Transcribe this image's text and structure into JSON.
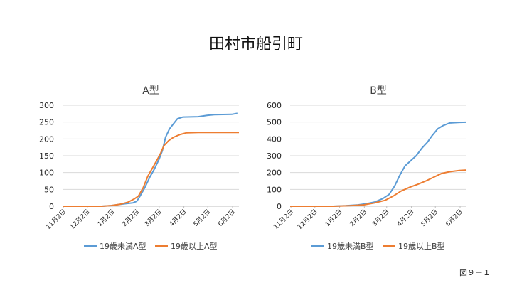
{
  "page": {
    "title": "田村市船引町",
    "figure_label": "図９－１"
  },
  "colors": {
    "series_under19": "#5b9bd5",
    "series_19plus": "#ed7d31",
    "gridline": "#d9d9d9",
    "axis_text": "#404040"
  },
  "chart_data": [
    {
      "type": "line",
      "title": "A型",
      "x_ticks": [
        "11月2日",
        "12月2日",
        "1月2日",
        "2月2日",
        "3月2日",
        "4月2日",
        "5月2日",
        "6月2日"
      ],
      "x_range": [
        "2020-11-01",
        "2021-06-10"
      ],
      "ylim": [
        0,
        300
      ],
      "y_ticks": [
        0,
        50,
        100,
        150,
        200,
        250,
        300
      ],
      "grid": true,
      "legend": "bottom",
      "series": [
        {
          "name": "19歳未満A型",
          "color": "#5b9bd5",
          "points": [
            [
              "2020-11-01",
              0
            ],
            [
              "2020-12-20",
              0
            ],
            [
              "2021-01-01",
              2
            ],
            [
              "2021-01-10",
              5
            ],
            [
              "2021-01-20",
              8
            ],
            [
              "2021-01-28",
              10
            ],
            [
              "2021-02-02",
              15
            ],
            [
              "2021-02-06",
              30
            ],
            [
              "2021-02-12",
              55
            ],
            [
              "2021-02-18",
              85
            ],
            [
              "2021-02-24",
              110
            ],
            [
              "2021-03-02",
              140
            ],
            [
              "2021-03-06",
              165
            ],
            [
              "2021-03-10",
              205
            ],
            [
              "2021-03-15",
              230
            ],
            [
              "2021-03-20",
              245
            ],
            [
              "2021-03-25",
              260
            ],
            [
              "2021-04-01",
              265
            ],
            [
              "2021-04-20",
              266
            ],
            [
              "2021-05-01",
              270
            ],
            [
              "2021-05-10",
              272
            ],
            [
              "2021-06-01",
              273
            ],
            [
              "2021-06-08",
              276
            ]
          ]
        },
        {
          "name": "19歳以上A型",
          "color": "#ed7d31",
          "points": [
            [
              "2020-11-01",
              0
            ],
            [
              "2020-12-20",
              0
            ],
            [
              "2021-01-01",
              2
            ],
            [
              "2021-01-12",
              6
            ],
            [
              "2021-01-22",
              12
            ],
            [
              "2021-01-30",
              22
            ],
            [
              "2021-02-04",
              30
            ],
            [
              "2021-02-10",
              55
            ],
            [
              "2021-02-16",
              90
            ],
            [
              "2021-02-22",
              115
            ],
            [
              "2021-02-28",
              140
            ],
            [
              "2021-03-04",
              158
            ],
            [
              "2021-03-08",
              180
            ],
            [
              "2021-03-14",
              195
            ],
            [
              "2021-03-20",
              205
            ],
            [
              "2021-03-28",
              213
            ],
            [
              "2021-04-05",
              218
            ],
            [
              "2021-04-20",
              219
            ],
            [
              "2021-06-10",
              219
            ]
          ]
        }
      ]
    },
    {
      "type": "line",
      "title": "B型",
      "x_ticks": [
        "11月2日",
        "12月2日",
        "1月2日",
        "2月2日",
        "3月2日",
        "4月2日",
        "5月2日",
        "6月2日"
      ],
      "x_range": [
        "2020-11-01",
        "2021-06-10"
      ],
      "ylim": [
        0,
        600
      ],
      "y_ticks": [
        0,
        100,
        200,
        300,
        400,
        500,
        600
      ],
      "grid": true,
      "legend": "bottom",
      "series": [
        {
          "name": "19歳未満B型",
          "color": "#5b9bd5",
          "points": [
            [
              "2020-11-01",
              0
            ],
            [
              "2020-12-25",
              0
            ],
            [
              "2021-01-10",
              3
            ],
            [
              "2021-01-25",
              8
            ],
            [
              "2021-02-05",
              15
            ],
            [
              "2021-02-15",
              25
            ],
            [
              "2021-02-25",
              45
            ],
            [
              "2021-03-05",
              70
            ],
            [
              "2021-03-12",
              120
            ],
            [
              "2021-03-18",
              180
            ],
            [
              "2021-03-25",
              240
            ],
            [
              "2021-04-01",
              270
            ],
            [
              "2021-04-08",
              300
            ],
            [
              "2021-04-15",
              345
            ],
            [
              "2021-04-22",
              380
            ],
            [
              "2021-04-28",
              420
            ],
            [
              "2021-05-05",
              460
            ],
            [
              "2021-05-12",
              480
            ],
            [
              "2021-05-20",
              495
            ],
            [
              "2021-06-01",
              498
            ],
            [
              "2021-06-10",
              499
            ]
          ]
        },
        {
          "name": "19歳以上B型",
          "color": "#ed7d31",
          "points": [
            [
              "2020-11-01",
              0
            ],
            [
              "2020-12-25",
              0
            ],
            [
              "2021-01-15",
              3
            ],
            [
              "2021-02-01",
              8
            ],
            [
              "2021-02-15",
              20
            ],
            [
              "2021-02-28",
              35
            ],
            [
              "2021-03-10",
              60
            ],
            [
              "2021-03-20",
              90
            ],
            [
              "2021-04-01",
              115
            ],
            [
              "2021-04-10",
              130
            ],
            [
              "2021-04-20",
              150
            ],
            [
              "2021-05-01",
              175
            ],
            [
              "2021-05-10",
              195
            ],
            [
              "2021-05-20",
              205
            ],
            [
              "2021-06-01",
              212
            ],
            [
              "2021-06-10",
              215
            ]
          ]
        }
      ]
    }
  ]
}
